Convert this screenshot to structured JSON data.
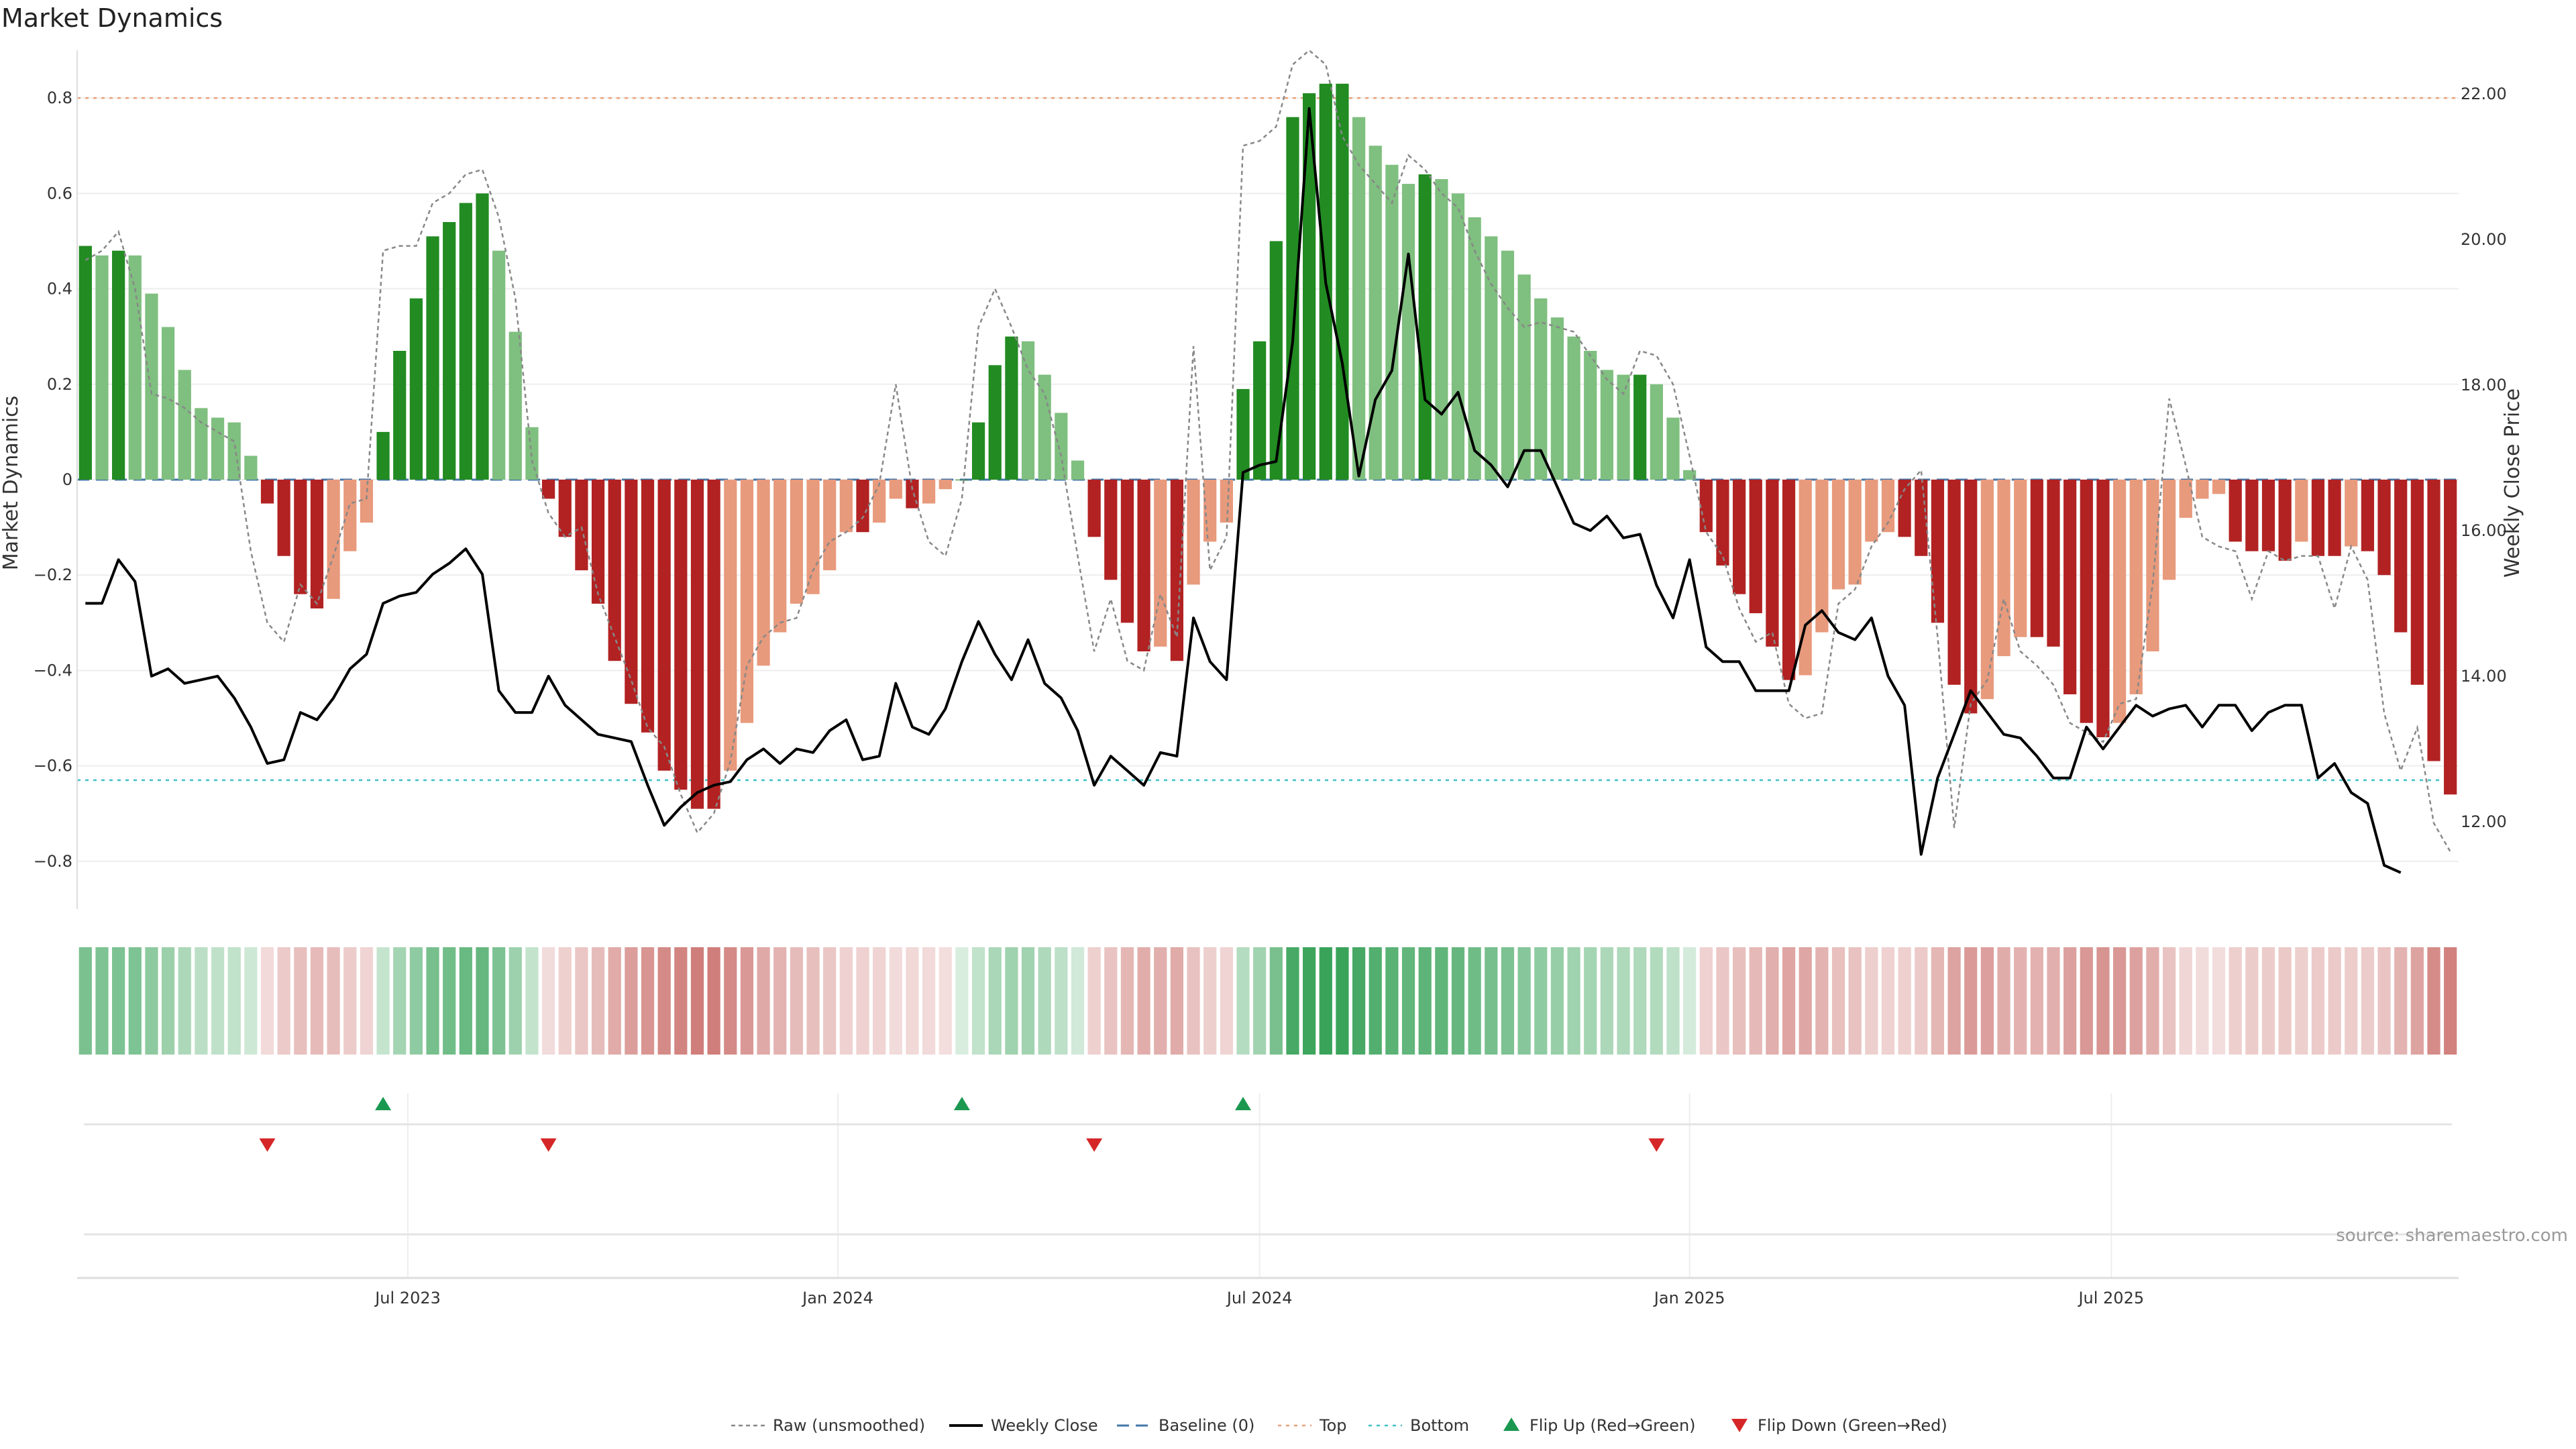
{
  "chart_data": {
    "type": "bar",
    "title": "Market Dynamics",
    "ylabel": "Market Dynamics",
    "y2label": "Weekly Close Price",
    "source": "source: sharemaestro.com",
    "ylim": [
      -0.9,
      0.9
    ],
    "y2lim": [
      10.8,
      22.6
    ],
    "grid": true,
    "legend_position": "bottom",
    "y_ticks": [
      {
        "value": 0.8,
        "label": "0.8"
      },
      {
        "value": 0.6,
        "label": "0.6"
      },
      {
        "value": 0.4,
        "label": "0.4"
      },
      {
        "value": 0.2,
        "label": "0.2"
      },
      {
        "value": 0,
        "label": "0"
      },
      {
        "value": -0.2,
        "label": "−0.2"
      },
      {
        "value": -0.4,
        "label": "−0.4"
      },
      {
        "value": -0.6,
        "label": "−0.6"
      },
      {
        "value": -0.8,
        "label": "−0.8"
      }
    ],
    "y2_ticks": [
      {
        "value": 22,
        "label": "22.00"
      },
      {
        "value": 20,
        "label": "20.00"
      },
      {
        "value": 18,
        "label": "18.00"
      },
      {
        "value": 16,
        "label": "16.00"
      },
      {
        "value": 14,
        "label": "14.00"
      },
      {
        "value": 12,
        "label": "12.00"
      }
    ],
    "x_ticks": [
      {
        "index": 19.5,
        "label": "Jul 2023"
      },
      {
        "index": 45.5,
        "label": "Jan 2024"
      },
      {
        "index": 71,
        "label": "Jul 2024"
      },
      {
        "index": 97,
        "label": "Jan 2025"
      },
      {
        "index": 122.5,
        "label": "Jul 2025"
      }
    ],
    "top_threshold": 0.8,
    "bottom_threshold": -0.63,
    "dynamics": [
      0.49,
      0.47,
      0.48,
      0.47,
      0.39,
      0.32,
      0.23,
      0.15,
      0.13,
      0.12,
      0.05,
      -0.05,
      -0.16,
      -0.24,
      -0.27,
      -0.25,
      -0.15,
      -0.09,
      0.1,
      0.27,
      0.38,
      0.51,
      0.54,
      0.58,
      0.6,
      0.48,
      0.31,
      0.11,
      -0.04,
      -0.12,
      -0.19,
      -0.26,
      -0.38,
      -0.47,
      -0.53,
      -0.61,
      -0.65,
      -0.69,
      -0.69,
      -0.61,
      -0.51,
      -0.39,
      -0.32,
      -0.26,
      -0.24,
      -0.19,
      -0.11,
      -0.11,
      -0.09,
      -0.04,
      -0.06,
      -0.05,
      -0.02,
      0.0,
      0.12,
      0.24,
      0.3,
      0.29,
      0.22,
      0.14,
      0.04,
      -0.12,
      -0.21,
      -0.3,
      -0.36,
      -0.35,
      -0.38,
      -0.22,
      -0.13,
      -0.09,
      0.19,
      0.29,
      0.5,
      0.76,
      0.81,
      0.83,
      0.83,
      0.76,
      0.7,
      0.66,
      0.62,
      0.64,
      0.63,
      0.6,
      0.55,
      0.51,
      0.48,
      0.43,
      0.38,
      0.34,
      0.3,
      0.27,
      0.23,
      0.22,
      0.22,
      0.2,
      0.13,
      0.02,
      -0.11,
      -0.18,
      -0.24,
      -0.28,
      -0.35,
      -0.42,
      -0.41,
      -0.32,
      -0.23,
      -0.22,
      -0.13,
      -0.11,
      -0.12,
      -0.16,
      -0.3,
      -0.43,
      -0.49,
      -0.46,
      -0.37,
      -0.33,
      -0.33,
      -0.35,
      -0.45,
      -0.51,
      -0.54,
      -0.51,
      -0.45,
      -0.36,
      -0.21,
      -0.08,
      -0.04,
      -0.03,
      -0.13,
      -0.15,
      -0.15,
      -0.17,
      -0.13,
      -0.16,
      -0.16,
      -0.14,
      -0.15,
      -0.2,
      -0.32,
      -0.43,
      -0.59,
      -0.66
    ],
    "raw": [
      0.46,
      0.48,
      0.52,
      0.4,
      0.18,
      0.17,
      0.15,
      0.12,
      0.1,
      0.08,
      -0.15,
      -0.3,
      -0.34,
      -0.22,
      -0.26,
      -0.16,
      -0.05,
      -0.04,
      0.48,
      0.49,
      0.49,
      0.58,
      0.6,
      0.64,
      0.65,
      0.55,
      0.38,
      0.04,
      -0.07,
      -0.12,
      -0.1,
      -0.24,
      -0.33,
      -0.42,
      -0.52,
      -0.56,
      -0.66,
      -0.74,
      -0.7,
      -0.59,
      -0.39,
      -0.33,
      -0.3,
      -0.29,
      -0.19,
      -0.13,
      -0.11,
      -0.08,
      -0.01,
      0.2,
      -0.02,
      -0.13,
      -0.16,
      -0.04,
      0.32,
      0.4,
      0.32,
      0.23,
      0.18,
      0.05,
      -0.16,
      -0.36,
      -0.25,
      -0.38,
      -0.4,
      -0.24,
      -0.33,
      0.28,
      -0.19,
      -0.12,
      0.7,
      0.71,
      0.74,
      0.87,
      0.9,
      0.87,
      0.72,
      0.66,
      0.62,
      0.58,
      0.68,
      0.65,
      0.6,
      0.57,
      0.48,
      0.41,
      0.36,
      0.32,
      0.33,
      0.32,
      0.31,
      0.26,
      0.21,
      0.18,
      0.27,
      0.26,
      0.2,
      0.05,
      -0.11,
      -0.16,
      -0.27,
      -0.34,
      -0.32,
      -0.47,
      -0.5,
      -0.49,
      -0.26,
      -0.23,
      -0.14,
      -0.09,
      -0.02,
      0.02,
      -0.33,
      -0.73,
      -0.47,
      -0.42,
      -0.25,
      -0.36,
      -0.39,
      -0.43,
      -0.51,
      -0.53,
      -0.55,
      -0.47,
      -0.46,
      -0.22,
      0.17,
      0.03,
      -0.12,
      -0.14,
      -0.15,
      -0.25,
      -0.15,
      -0.17,
      -0.16,
      -0.16,
      -0.27,
      -0.14,
      -0.21,
      -0.49,
      -0.61,
      -0.52,
      -0.72,
      -0.78
    ],
    "close": [
      15.0,
      15.0,
      15.6,
      15.3,
      14.0,
      14.1,
      13.9,
      13.95,
      14.0,
      13.7,
      13.3,
      12.8,
      12.85,
      13.5,
      13.4,
      13.7,
      14.1,
      14.3,
      15.0,
      15.1,
      15.15,
      15.4,
      15.55,
      15.75,
      15.4,
      13.8,
      13.5,
      13.5,
      14.0,
      13.6,
      13.4,
      13.2,
      13.15,
      13.1,
      12.5,
      11.95,
      12.2,
      12.4,
      12.5,
      12.55,
      12.85,
      13.0,
      12.8,
      13.0,
      12.95,
      13.25,
      13.4,
      12.85,
      12.9,
      13.9,
      13.3,
      13.2,
      13.55,
      14.2,
      14.75,
      14.3,
      13.95,
      14.5,
      13.9,
      13.7,
      13.25,
      12.5,
      12.9,
      12.7,
      12.5,
      12.95,
      12.9,
      14.8,
      14.2,
      13.95,
      16.8,
      16.9,
      16.95,
      18.6,
      21.8,
      19.4,
      18.3,
      16.75,
      17.8,
      18.2,
      19.8,
      17.8,
      17.6,
      17.9,
      17.1,
      16.9,
      16.6,
      17.1,
      17.1,
      16.6,
      16.1,
      16.0,
      16.2,
      15.9,
      15.95,
      15.25,
      14.8,
      15.6,
      14.4,
      14.2,
      14.2,
      13.8,
      13.8,
      13.8,
      14.7,
      14.9,
      14.6,
      14.5,
      14.8,
      14.0,
      13.6,
      11.55,
      12.6,
      13.2,
      13.8,
      13.5,
      13.2,
      13.15,
      12.9,
      12.6,
      12.6,
      13.3,
      13.0,
      13.3,
      13.6,
      13.45,
      13.55,
      13.6,
      13.3,
      13.6,
      13.6,
      13.25,
      13.5,
      13.6,
      13.6,
      12.6,
      12.8,
      12.4,
      12.25,
      11.4,
      11.3
    ],
    "flips_up": [
      18,
      53,
      70
    ],
    "flips_down": [
      11,
      28,
      61,
      95
    ],
    "legend": [
      {
        "key": "raw",
        "label": "Raw (unsmoothed)"
      },
      {
        "key": "close",
        "label": "Weekly Close"
      },
      {
        "key": "baseline",
        "label": "Baseline (0)"
      },
      {
        "key": "top",
        "label": "Top"
      },
      {
        "key": "bottom",
        "label": "Bottom"
      },
      {
        "key": "flip_up",
        "label": "Flip Up (Red→Green)"
      },
      {
        "key": "flip_down",
        "label": "Flip Down (Green→Red)"
      }
    ],
    "colors": {
      "pos_strong": "#228b22",
      "pos_weak": "#7fbf7f",
      "neg_strong": "#b22222",
      "neg_weak": "#e89a7c",
      "close_line": "#000000",
      "raw_line": "#888888",
      "baseline": "#4477aa",
      "top_line": "#e8a07a",
      "bottom_line": "#40c0c8",
      "flip_up": "#1a9850",
      "flip_down": "#d62728"
    }
  }
}
